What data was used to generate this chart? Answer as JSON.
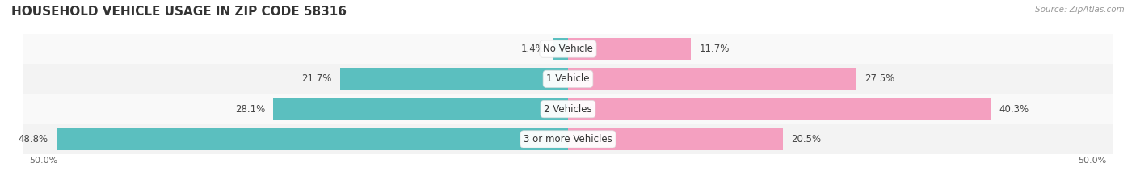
{
  "title": "HOUSEHOLD VEHICLE USAGE IN ZIP CODE 58316",
  "source": "Source: ZipAtlas.com",
  "categories": [
    "No Vehicle",
    "1 Vehicle",
    "2 Vehicles",
    "3 or more Vehicles"
  ],
  "owner_values": [
    1.4,
    21.7,
    28.1,
    48.8
  ],
  "renter_values": [
    11.7,
    27.5,
    40.3,
    20.5
  ],
  "owner_color": "#5BBFBF",
  "renter_color": "#F4A0C0",
  "axis_max": 50.0,
  "title_fontsize": 11,
  "bar_label_fontsize": 8.5,
  "bar_height": 0.72,
  "row_colors": [
    "#F7F7F7",
    "#EFEFEF",
    "#F7F7F7",
    "#E8E8E8"
  ]
}
